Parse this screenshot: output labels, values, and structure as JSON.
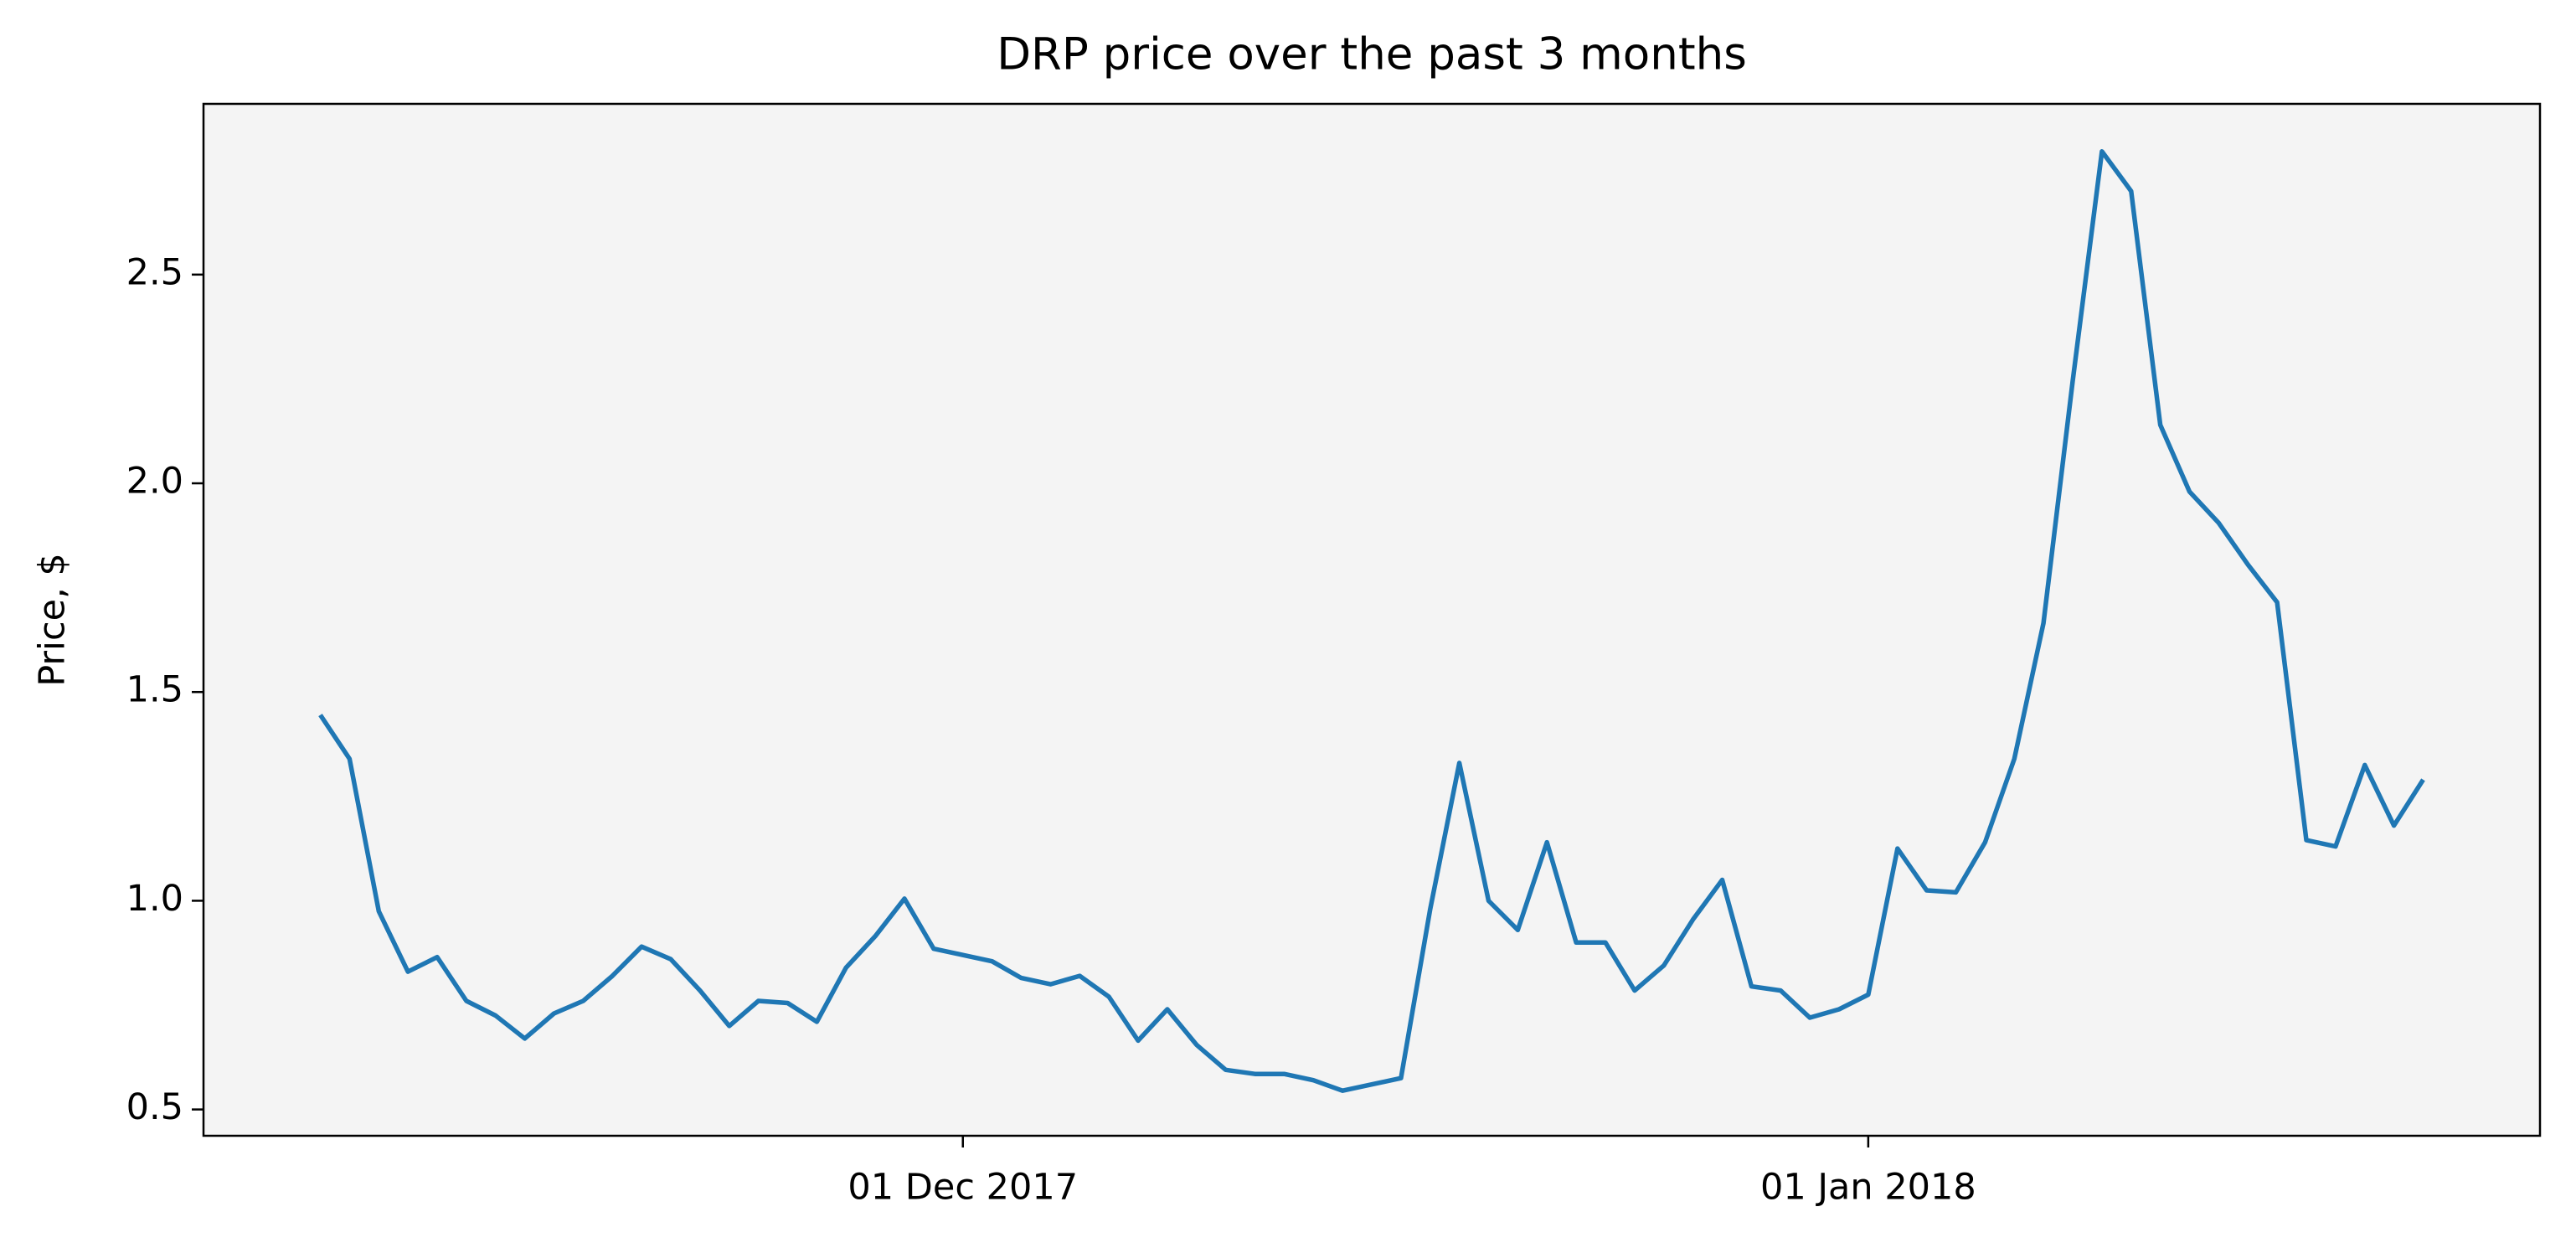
{
  "chart_data": {
    "type": "line",
    "title": "DRP price over the past 3 months",
    "y_label": "Price, $",
    "x": [
      "2017-11-09",
      "2017-11-10",
      "2017-11-11",
      "2017-11-12",
      "2017-11-13",
      "2017-11-14",
      "2017-11-15",
      "2017-11-16",
      "2017-11-17",
      "2017-11-18",
      "2017-11-19",
      "2017-11-20",
      "2017-11-21",
      "2017-11-22",
      "2017-11-23",
      "2017-11-24",
      "2017-11-25",
      "2017-11-26",
      "2017-11-27",
      "2017-11-28",
      "2017-11-29",
      "2017-11-30",
      "2017-12-01",
      "2017-12-02",
      "2017-12-03",
      "2017-12-04",
      "2017-12-05",
      "2017-12-06",
      "2017-12-07",
      "2017-12-08",
      "2017-12-09",
      "2017-12-10",
      "2017-12-11",
      "2017-12-12",
      "2017-12-13",
      "2017-12-14",
      "2017-12-15",
      "2017-12-16",
      "2017-12-17",
      "2017-12-18",
      "2017-12-19",
      "2017-12-20",
      "2017-12-21",
      "2017-12-22",
      "2017-12-23",
      "2017-12-24",
      "2017-12-25",
      "2017-12-26",
      "2017-12-27",
      "2017-12-28",
      "2017-12-29",
      "2017-12-30",
      "2017-12-31",
      "2018-01-01",
      "2018-01-02",
      "2018-01-03",
      "2018-01-04",
      "2018-01-05",
      "2018-01-06",
      "2018-01-07",
      "2018-01-08",
      "2018-01-09",
      "2018-01-10",
      "2018-01-11",
      "2018-01-12",
      "2018-01-13",
      "2018-01-14",
      "2018-01-15",
      "2018-01-16",
      "2018-01-17",
      "2018-01-18",
      "2018-01-19",
      "2018-01-20"
    ],
    "values": [
      1.445,
      1.34,
      0.975,
      0.83,
      0.865,
      0.76,
      0.725,
      0.67,
      0.73,
      0.76,
      0.82,
      0.89,
      0.86,
      0.785,
      0.7,
      0.76,
      0.755,
      0.71,
      0.84,
      0.915,
      1.005,
      0.885,
      0.87,
      0.855,
      0.815,
      0.8,
      0.82,
      0.77,
      0.665,
      0.74,
      0.655,
      0.595,
      0.585,
      0.585,
      0.57,
      0.545,
      0.56,
      0.575,
      0.98,
      1.33,
      1.0,
      0.93,
      1.14,
      0.9,
      0.9,
      0.785,
      0.845,
      0.955,
      1.05,
      0.795,
      0.785,
      0.72,
      0.74,
      0.775,
      1.125,
      1.025,
      1.02,
      1.14,
      1.34,
      1.665,
      2.245,
      2.795,
      2.7,
      2.14,
      1.98,
      1.905,
      1.805,
      1.715,
      1.145,
      1.13,
      1.325,
      1.18,
      1.29
    ],
    "color": "#1f77b4",
    "xlim": [
      "2017-11-05",
      "2018-01-24"
    ],
    "xticks": [
      {
        "value": "2017-12-01",
        "label": "01 Dec 2017"
      },
      {
        "value": "2018-01-01",
        "label": "01 Jan 2018"
      }
    ],
    "ylim": [
      0.437,
      2.909
    ],
    "yticks": [
      0.5,
      {
        "value": 1,
        "label": "1.0"
      },
      1.5,
      {
        "value": 2,
        "label": "2.0"
      },
      2.5
    ]
  }
}
